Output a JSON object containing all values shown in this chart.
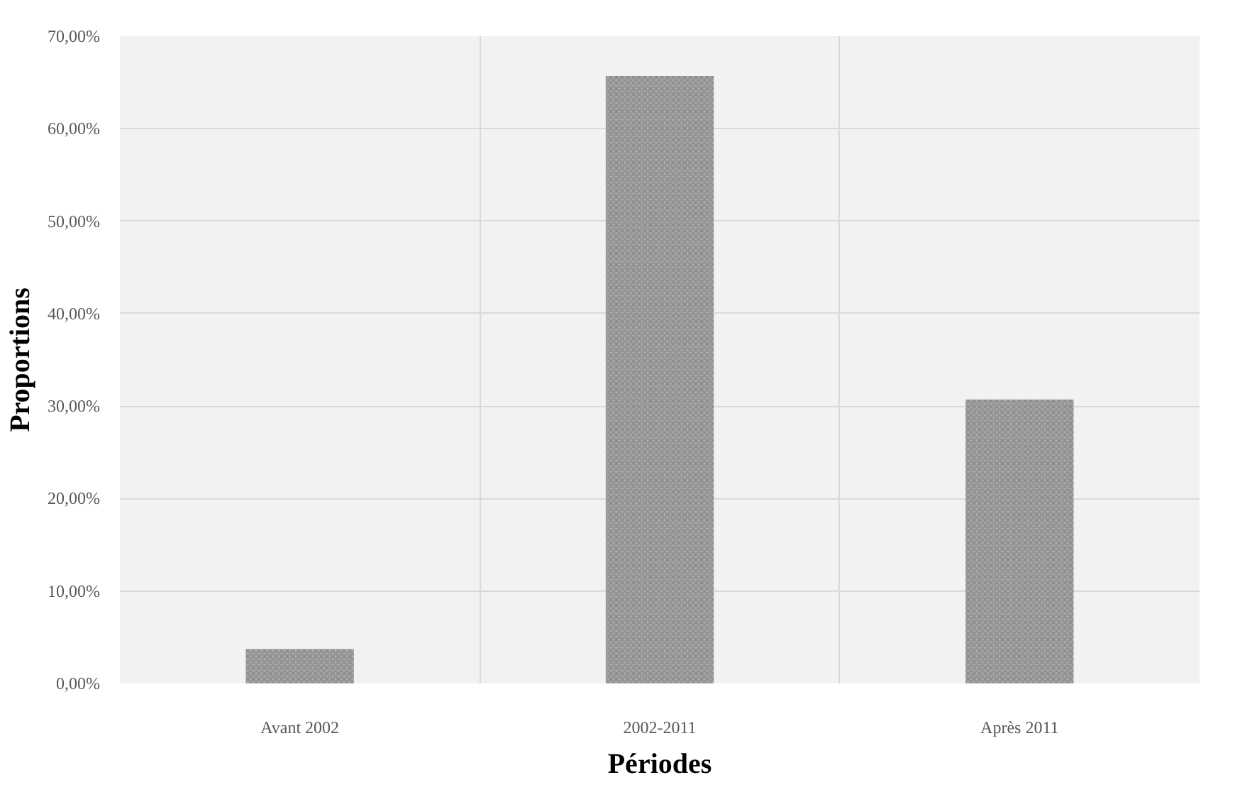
{
  "chart_data": {
    "type": "bar",
    "xlabel": "Périodes",
    "ylabel": "Proportions",
    "categories": [
      "Avant 2002",
      "2002-2011",
      "Après 2011"
    ],
    "values": [
      3.7,
      65.7,
      30.7
    ],
    "color": "#a6a6a6",
    "ylim": [
      0,
      70
    ],
    "yticks": [
      {
        "value": 0,
        "label": "0,00%"
      },
      {
        "value": 10,
        "label": "10,00%"
      },
      {
        "value": 20,
        "label": "20,00%"
      },
      {
        "value": 30,
        "label": "30,00%"
      },
      {
        "value": 40,
        "label": "40,00%"
      },
      {
        "value": 50,
        "label": "50,00%"
      },
      {
        "value": 60,
        "label": "60,00%"
      },
      {
        "value": 70,
        "label": "70,00%"
      }
    ],
    "grid": true
  }
}
